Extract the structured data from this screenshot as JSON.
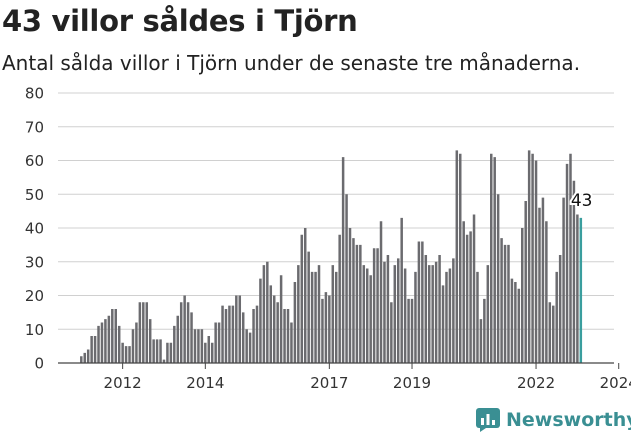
{
  "title": "43 villor såldes i Tjörn",
  "subtitle": "Antal sålda villor i Tjörn under de senaste tre månaderna.",
  "brand": "Newsworthy",
  "colors": {
    "bar": "#6b6b6f",
    "highlight": "#3a9e9e",
    "grid": "#d0d0d0",
    "axis": "#555555",
    "brand": "#3a8f93"
  },
  "chart_data": {
    "type": "bar",
    "title": "43 villor såldes i Tjörn",
    "subtitle": "Antal sålda villor i Tjörn under de senaste tre månaderna.",
    "xlabel": "",
    "ylabel": "",
    "ylim": [
      0,
      80
    ],
    "yticks": [
      0,
      10,
      20,
      30,
      40,
      50,
      60,
      70,
      80
    ],
    "xtick_labels": [
      "2012",
      "2014",
      "2017",
      "2019",
      "2022",
      "2024"
    ],
    "xtick_months": [
      12,
      36,
      72,
      96,
      132,
      156
    ],
    "grid": true,
    "start": "2011-01",
    "unit": "month",
    "values": [
      2,
      3,
      4,
      8,
      8,
      11,
      12,
      13,
      14,
      16,
      16,
      11,
      6,
      5,
      5,
      10,
      12,
      18,
      18,
      18,
      13,
      7,
      7,
      7,
      1,
      6,
      6,
      11,
      14,
      18,
      20,
      18,
      15,
      10,
      10,
      10,
      6,
      8,
      6,
      12,
      12,
      17,
      16,
      17,
      17,
      20,
      20,
      15,
      10,
      9,
      16,
      17,
      25,
      29,
      30,
      23,
      20,
      18,
      26,
      16,
      16,
      12,
      24,
      29,
      38,
      40,
      33,
      27,
      27,
      29,
      19,
      21,
      20,
      29,
      27,
      38,
      61,
      50,
      40,
      37,
      35,
      35,
      29,
      28,
      26,
      34,
      34,
      42,
      30,
      32,
      18,
      29,
      31,
      43,
      28,
      19,
      19,
      27,
      36,
      36,
      32,
      29,
      29,
      30,
      32,
      23,
      27,
      28,
      31,
      63,
      62,
      42,
      38,
      39,
      44,
      27,
      13,
      19,
      29,
      62,
      61,
      50,
      37,
      35,
      35,
      25,
      24,
      22,
      40,
      48,
      63,
      62,
      60,
      46,
      49,
      42,
      18,
      17,
      27,
      32,
      49,
      59,
      62,
      54,
      44,
      43
    ],
    "highlight_last": true,
    "last_value_label": "43"
  }
}
